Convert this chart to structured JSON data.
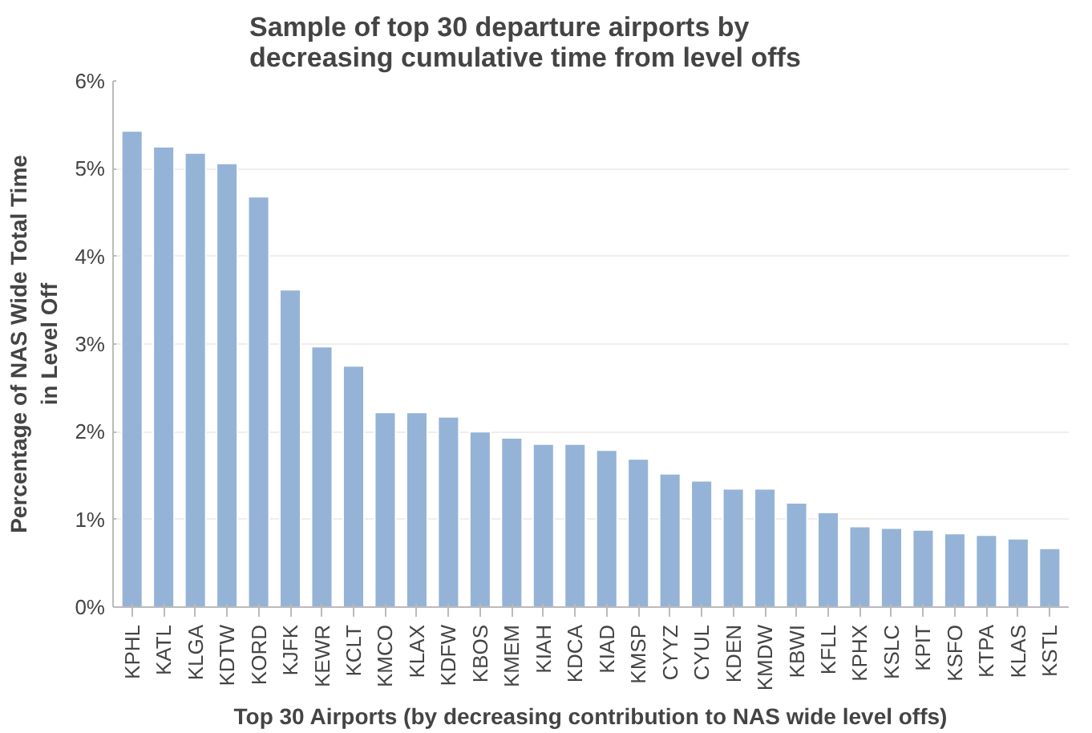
{
  "chart_data": {
    "type": "bar",
    "title": "Sample of top 30 departure airports by decreasing cumulative time from level offs",
    "xlabel": "Top 30 Airports (by decreasing contribution to NAS wide level offs)",
    "ylabel": "Percentage of NAS Wide Total Time in Level Off",
    "categories": [
      "KPHL",
      "KATL",
      "KLGA",
      "KDTW",
      "KORD",
      "KJFK",
      "KEWR",
      "KCLT",
      "KMCO",
      "KLAX",
      "KDFW",
      "KBOS",
      "KMEM",
      "KIAH",
      "KDCA",
      "KIAD",
      "KMSP",
      "CYYZ",
      "CYUL",
      "KDEN",
      "KMDW",
      "KBWI",
      "KFLL",
      "KPHX",
      "KSLC",
      "KPIT",
      "KSFO",
      "KTPA",
      "KLAS",
      "KSTL"
    ],
    "values": [
      5.43,
      5.25,
      5.18,
      5.06,
      4.68,
      3.62,
      2.97,
      2.75,
      2.22,
      2.22,
      2.17,
      2.0,
      1.93,
      1.86,
      1.86,
      1.79,
      1.69,
      1.52,
      1.44,
      1.35,
      1.35,
      1.19,
      1.08,
      0.92,
      0.9,
      0.88,
      0.84,
      0.82,
      0.78,
      0.67
    ],
    "color": "#95b3d7",
    "ylim": [
      0,
      6
    ],
    "yticks": [
      {
        "value": 0,
        "label": "0%"
      },
      {
        "value": 1,
        "label": "1%"
      },
      {
        "value": 2,
        "label": "2%"
      },
      {
        "value": 3,
        "label": "3%"
      },
      {
        "value": 4,
        "label": "4%"
      },
      {
        "value": 5,
        "label": "5%"
      },
      {
        "value": 6,
        "label": "6%"
      }
    ],
    "grid": "y"
  }
}
